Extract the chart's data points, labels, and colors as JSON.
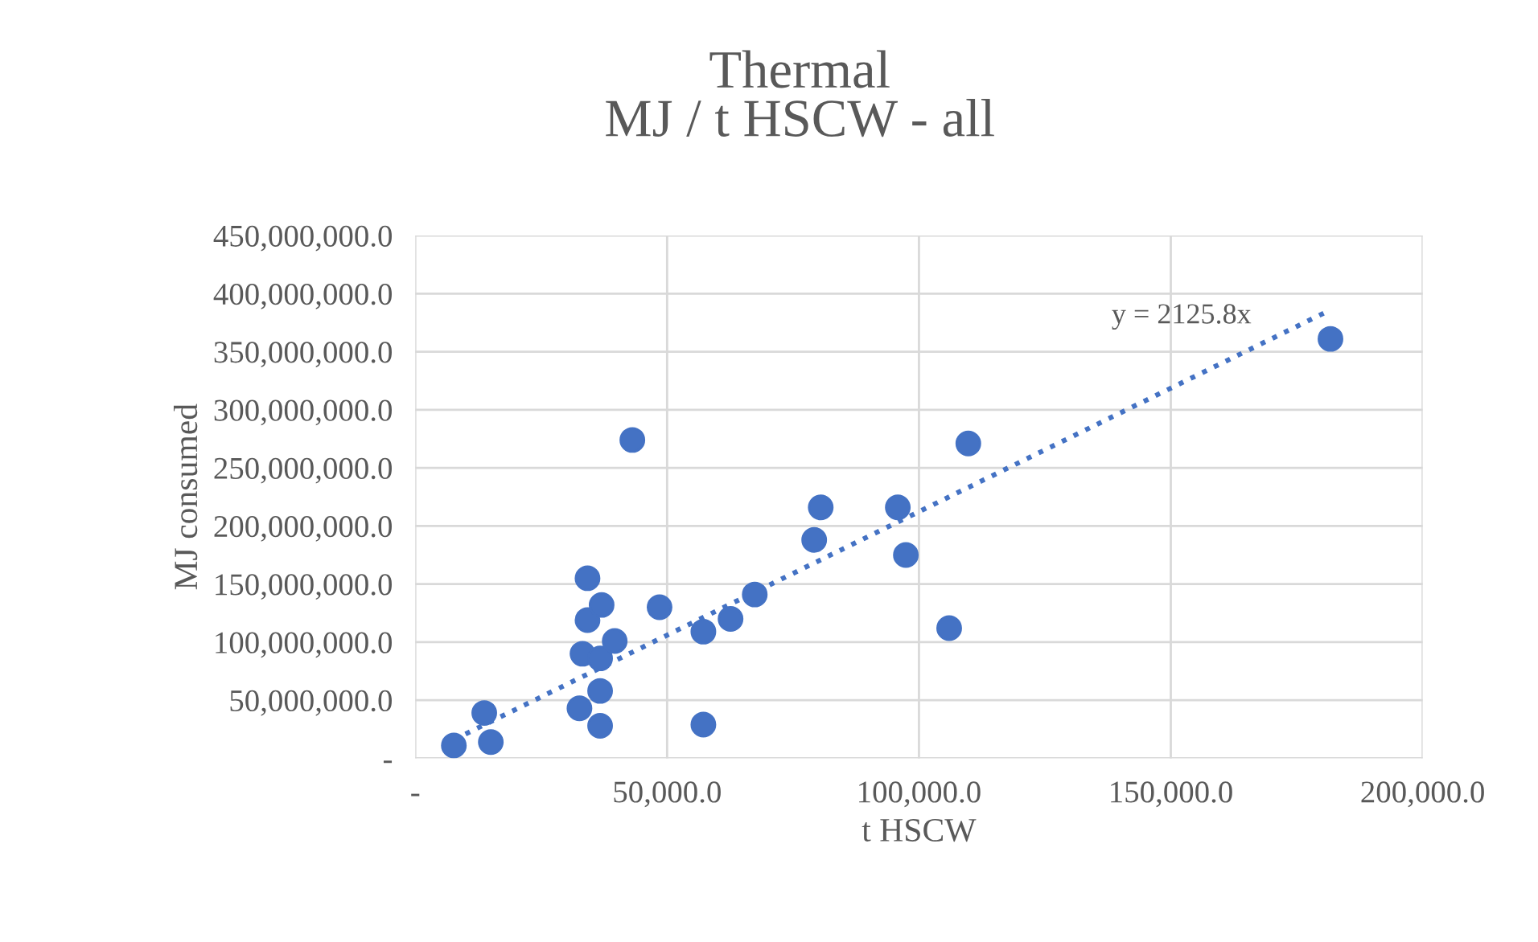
{
  "chart_data": {
    "type": "scatter",
    "title": "Thermal",
    "subtitle": "MJ / t HSCW - all",
    "xlabel": "t HSCW",
    "ylabel": "MJ consumed",
    "series": [
      {
        "color": "#4472c4",
        "marker": "circle",
        "x": [
          7660,
          13700,
          15000,
          32600,
          33200,
          34200,
          34200,
          36700,
          36700,
          37000,
          36700,
          39600,
          43100,
          48500,
          57200,
          57200,
          62600,
          67400,
          79200,
          80500,
          95800,
          97400,
          106000,
          109800,
          181700
        ],
        "values": [
          11000000,
          39000000,
          14000000,
          43000000,
          90000000,
          155000000,
          119000000,
          28000000,
          58000000,
          132000000,
          86000000,
          101000000,
          274000000,
          130000000,
          109000000,
          29000000,
          120000000,
          141000000,
          188000000,
          216000000,
          216000000,
          175000000,
          112000000,
          271000000,
          361000000
        ]
      },
      {
        "type": "line",
        "color": "#4472c4",
        "line_style": "dotted",
        "marker": "none",
        "x": [
          7660,
          181700
        ],
        "values": [
          16000000,
          386000000
        ]
      }
    ],
    "annotations": [
      "y = 2125.8x"
    ],
    "xlim": [
      0,
      200000
    ],
    "xticks": [
      {
        "value": 0,
        "label": "-"
      },
      {
        "value": 50000,
        "label": "50,000.0"
      },
      {
        "value": 100000,
        "label": "100,000.0"
      },
      {
        "value": 150000,
        "label": "150,000.0"
      },
      {
        "value": 200000,
        "label": "200,000.0"
      }
    ],
    "ylim": [
      0,
      450000000
    ],
    "yticks": [
      {
        "value": 0,
        "label": "-"
      },
      {
        "value": 50000000,
        "label": "50,000,000.0"
      },
      {
        "value": 100000000,
        "label": "100,000,000.0"
      },
      {
        "value": 150000000,
        "label": "150,000,000.0"
      },
      {
        "value": 200000000,
        "label": "200,000,000.0"
      },
      {
        "value": 250000000,
        "label": "250,000,000.0"
      },
      {
        "value": 300000000,
        "label": "300,000,000.0"
      },
      {
        "value": 350000000,
        "label": "350,000,000.0"
      },
      {
        "value": 400000000,
        "label": "400,000,000.0"
      },
      {
        "value": 450000000,
        "label": "450,000,000.0"
      }
    ],
    "grid": true,
    "legend": false
  }
}
